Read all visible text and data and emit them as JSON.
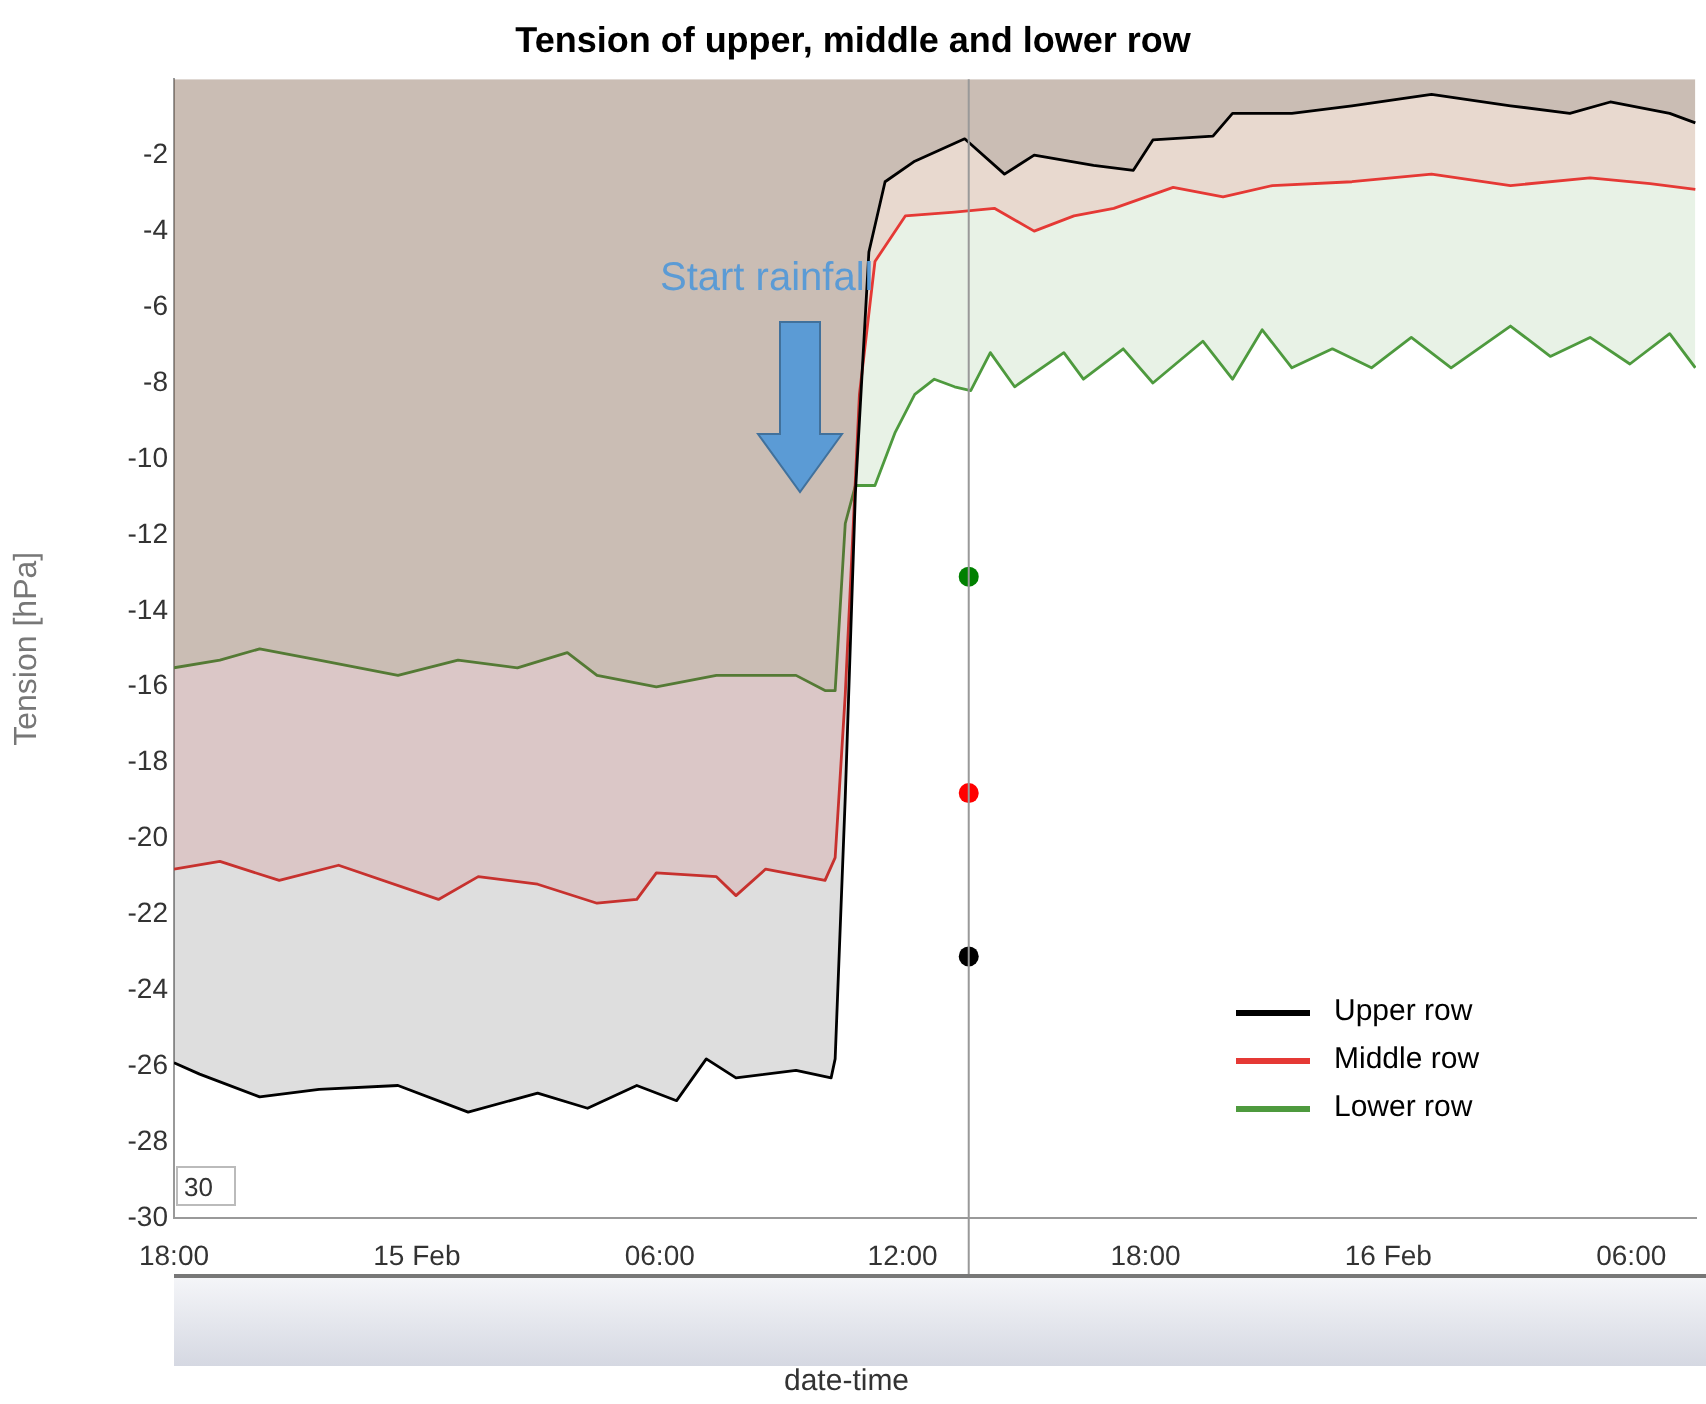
{
  "chart_data": {
    "type": "area",
    "title": "Tension of upper, middle and lower row",
    "xlabel": "date-time",
    "ylabel": "Tension [hPa]",
    "xlim": [
      "--02-14T18:00",
      "--02-16T07:36"
    ],
    "ylim": [
      -30,
      0
    ],
    "xticks": [
      {
        "value": "--02-14T18:00",
        "label": "18:00"
      },
      {
        "value": "--02-15",
        "label": "15 Feb"
      },
      {
        "value": "--02-15T06:00",
        "label": "06:00"
      },
      {
        "value": "--02-15T12:00",
        "label": "12:00"
      },
      {
        "value": "--02-15T18:00",
        "label": "18:00"
      },
      {
        "value": "--02-16",
        "label": "16 Feb"
      },
      {
        "value": "--02-16T06:00",
        "label": "06:00"
      }
    ],
    "yticks": [
      -30,
      -28,
      -26,
      -24,
      -22,
      -20,
      -18,
      -16,
      -14,
      -12,
      -10,
      -8,
      -6,
      -4,
      -2
    ],
    "grid": false,
    "legend": "bottom right",
    "marker": "none",
    "line_style": "solid",
    "ref_lines": [
      {
        "axis": "x",
        "value": "--02-15T13:38",
        "label": null,
        "color": "#999999"
      }
    ],
    "annotations": [
      "Start rainfall",
      "30"
    ],
    "series": [
      {
        "name": "Upper row",
        "color": "#000000",
        "x": [
          "--02-14T18:00",
          "--02-14T18:38",
          "--02-14T20:07",
          "--02-14T21:35",
          "--02-14T23:32",
          "--02-15T01:16",
          "--02-15T02:59",
          "--02-15T04:13",
          "--02-15T05:26",
          "--02-15T06:25",
          "--02-15T07:09",
          "--02-15T07:53",
          "--02-15T09:22",
          "--02-15T10:14",
          "--02-15T10:20",
          "--02-15T10:35",
          "--02-15T10:50",
          "--02-15T11:10",
          "--02-15T11:34",
          "--02-15T12:18",
          "--02-15T13:32",
          "--02-15T14:31",
          "--02-15T15:15",
          "--02-15T16:43",
          "--02-15T17:42",
          "--02-15T18:11",
          "--02-15T19:40",
          "--02-15T20:09",
          "--02-15T21:37",
          "--02-15T23:06",
          "--02-16T01:04",
          "--02-16T03:01",
          "--02-16T04:29",
          "--02-16T05:29",
          "--02-16T06:57",
          "--02-16T07:35"
        ],
        "values": [
          -25.9,
          -26.2,
          -26.8,
          -26.6,
          -26.5,
          -27.2,
          -26.7,
          -27.1,
          -26.5,
          -26.9,
          -25.8,
          -26.3,
          -26.1,
          -26.3,
          -25.8,
          -18.9,
          -10.9,
          -4.55,
          -2.7,
          -2.16,
          -1.57,
          -2.5,
          -2.0,
          -2.27,
          -2.4,
          -1.6,
          -1.5,
          -0.9,
          -0.9,
          -0.7,
          -0.4,
          -0.7,
          -0.9,
          -0.6,
          -0.9,
          -1.15
        ]
      },
      {
        "name": "Middle row",
        "color": "#e53935",
        "x": [
          "--02-14T18:00",
          "--02-14T19:08",
          "--02-14T20:36",
          "--02-14T22:04",
          "--02-15T00:32",
          "--02-15T01:31",
          "--02-15T02:59",
          "--02-15T04:27",
          "--02-15T05:26",
          "--02-15T05:55",
          "--02-15T07:24",
          "--02-15T07:53",
          "--02-15T08:37",
          "--02-15T10:05",
          "--02-15T10:20",
          "--02-15T10:35",
          "--02-15T10:56",
          "--02-15T11:19",
          "--02-15T12:04",
          "--02-15T13:17",
          "--02-15T14:16",
          "--02-15T15:15",
          "--02-15T16:14",
          "--02-15T17:13",
          "--02-15T18:41",
          "--02-15T19:55",
          "--02-15T21:08",
          "--02-15T23:06",
          "--02-16T01:04",
          "--02-16T03:01",
          "--02-16T04:59",
          "--02-16T06:28",
          "--02-16T07:35"
        ],
        "values": [
          -20.8,
          -20.6,
          -21.1,
          -20.7,
          -21.6,
          -21.0,
          -21.2,
          -21.7,
          -21.6,
          -20.9,
          -21.0,
          -21.5,
          -20.8,
          -21.1,
          -20.5,
          -16.2,
          -8.3,
          -4.8,
          -3.6,
          -3.5,
          -3.4,
          -4.0,
          -3.6,
          -3.4,
          -2.85,
          -3.1,
          -2.8,
          -2.7,
          -2.5,
          -2.8,
          -2.6,
          -2.75,
          -2.9
        ]
      },
      {
        "name": "Lower row",
        "color": "#4e9a3e",
        "x": [
          "--02-14T18:00",
          "--02-14T19:08",
          "--02-14T20:07",
          "--02-14T21:35",
          "--02-14T23:32",
          "--02-15T01:01",
          "--02-15T02:29",
          "--02-15T03:43",
          "--02-15T04:27",
          "--02-15T05:55",
          "--02-15T07:24",
          "--02-15T09:22",
          "--02-15T10:05",
          "--02-15T10:20",
          "--02-15T10:35",
          "--02-15T10:50",
          "--02-15T11:19",
          "--02-15T11:49",
          "--02-15T12:18",
          "--02-15T12:47",
          "--02-15T13:17",
          "--02-15T13:41",
          "--02-15T14:10",
          "--02-15T14:46",
          "--02-15T15:59",
          "--02-15T16:28",
          "--02-15T17:27",
          "--02-15T18:11",
          "--02-15T19:25",
          "--02-15T20:09",
          "--02-15T20:53",
          "--02-15T21:37",
          "--02-15T22:37",
          "--02-15T23:35",
          "--02-16T00:34",
          "--02-16T01:33",
          "--02-16T03:01",
          "--02-16T04:00",
          "--02-16T04:59",
          "--02-16T05:58",
          "--02-16T06:57",
          "--02-16T07:35"
        ],
        "values": [
          -15.5,
          -15.3,
          -15.0,
          -15.3,
          -15.7,
          -15.3,
          -15.5,
          -15.1,
          -15.7,
          -16.0,
          -15.7,
          -15.7,
          -16.1,
          -16.1,
          -11.7,
          -10.7,
          -10.7,
          -9.3,
          -8.3,
          -7.9,
          -8.1,
          -8.2,
          -7.2,
          -8.1,
          -7.2,
          -7.9,
          -7.1,
          -8.0,
          -6.9,
          -7.9,
          -6.6,
          -7.6,
          -7.1,
          -7.6,
          -6.8,
          -7.6,
          -6.5,
          -7.3,
          -6.8,
          -7.5,
          -6.7,
          -7.6
        ]
      },
      {
        "type": "scatter",
        "color": "#008000",
        "marker": "circle",
        "x": [
          "--02-15T13:38"
        ],
        "values": [
          -13.1
        ]
      },
      {
        "type": "scatter",
        "color": "#ff0000",
        "marker": "circle",
        "x": [
          "--02-15T13:38"
        ],
        "values": [
          -18.8
        ]
      },
      {
        "type": "scatter",
        "color": "#000000",
        "marker": "circle",
        "x": [
          "--02-15T13:38"
        ],
        "values": [
          -23.1
        ]
      }
    ]
  }
}
